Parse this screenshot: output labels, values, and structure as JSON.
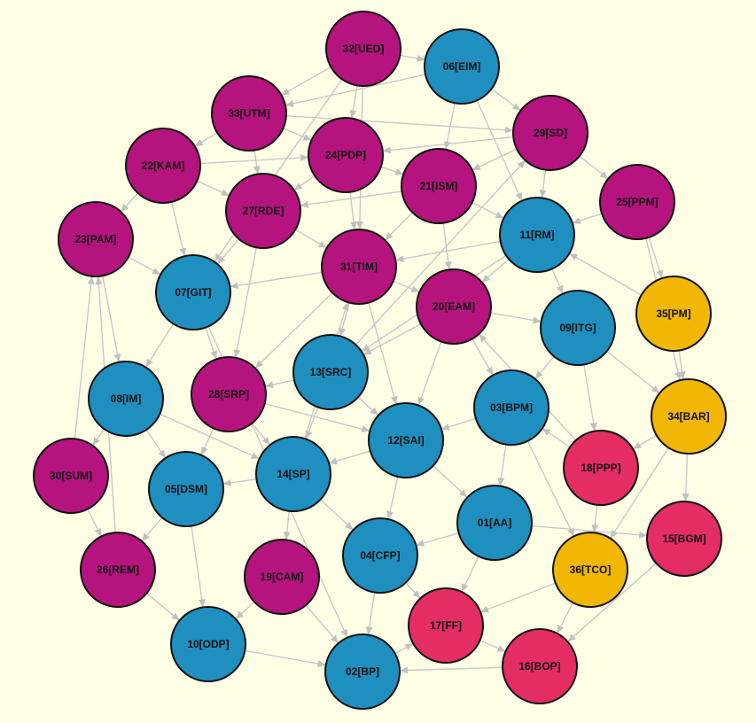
{
  "nodes": [
    {
      "label": "32[UED]",
      "color": "#b5137e"
    },
    {
      "label": "06[EIM]",
      "color": "#1e8fbf"
    },
    {
      "label": "33[UTM]",
      "color": "#b5137e"
    },
    {
      "label": "29[SD]",
      "color": "#b5137e"
    },
    {
      "label": "24[PDP]",
      "color": "#b5137e"
    },
    {
      "label": "22[KAM]",
      "color": "#b5137e"
    },
    {
      "label": "21[ISM]",
      "color": "#b5137e"
    },
    {
      "label": "25[PPM]",
      "color": "#b5137e"
    },
    {
      "label": "27[RDE]",
      "color": "#b5137e"
    },
    {
      "label": "11[RM]",
      "color": "#1e8fbf"
    },
    {
      "label": "23[PAM]",
      "color": "#b5137e"
    },
    {
      "label": "31[TIM]",
      "color": "#b5137e"
    },
    {
      "label": "07[GIT]",
      "color": "#1e8fbf"
    },
    {
      "label": "20[EAM]",
      "color": "#b5137e"
    },
    {
      "label": "35[PM]",
      "color": "#f2b705"
    },
    {
      "label": "09[ITG]",
      "color": "#1e8fbf"
    },
    {
      "label": "13[SRC]",
      "color": "#1e8fbf"
    },
    {
      "label": "08[IM]",
      "color": "#1e8fbf"
    },
    {
      "label": "28[SRP]",
      "color": "#b5137e"
    },
    {
      "label": "03[BPM]",
      "color": "#1e8fbf"
    },
    {
      "label": "34[BAR]",
      "color": "#f2b705"
    },
    {
      "label": "12[SAI]",
      "color": "#1e8fbf"
    },
    {
      "label": "18[PPP]",
      "color": "#e32d63"
    },
    {
      "label": "30[SUM]",
      "color": "#b5137e"
    },
    {
      "label": "14[SP]",
      "color": "#1e8fbf"
    },
    {
      "label": "05[DSM]",
      "color": "#1e8fbf"
    },
    {
      "label": "01[AA]",
      "color": "#1e8fbf"
    },
    {
      "label": "15[BGM]",
      "color": "#e32d63"
    },
    {
      "label": "04[CFP]",
      "color": "#1e8fbf"
    },
    {
      "label": "26[REM]",
      "color": "#b5137e"
    },
    {
      "label": "36[TCO]",
      "color": "#f2b705"
    },
    {
      "label": "19[CAM]",
      "color": "#b5137e"
    },
    {
      "label": "17[FF]",
      "color": "#e32d63"
    },
    {
      "label": "10[ODP]",
      "color": "#1e8fbf"
    },
    {
      "label": "16[BOP]",
      "color": "#e32d63"
    },
    {
      "label": "02[BP]",
      "color": "#1e8fbf"
    }
  ]
}
